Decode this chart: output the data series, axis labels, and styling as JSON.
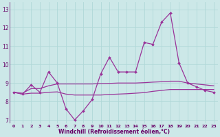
{
  "xlabel": "Windchill (Refroidissement éolien,°C)",
  "x_values": [
    0,
    1,
    2,
    3,
    4,
    5,
    6,
    7,
    8,
    9,
    10,
    11,
    12,
    13,
    14,
    15,
    16,
    17,
    18,
    19,
    20,
    21,
    22,
    23
  ],
  "line1": [
    8.5,
    8.4,
    8.9,
    8.5,
    9.6,
    9.0,
    7.6,
    7.0,
    7.5,
    8.1,
    9.5,
    10.4,
    9.6,
    9.6,
    9.6,
    11.2,
    11.1,
    12.3,
    12.8,
    10.1,
    9.0,
    8.8,
    8.6,
    8.5
  ],
  "line2": [
    8.5,
    8.45,
    8.7,
    8.7,
    8.85,
    8.95,
    8.95,
    8.95,
    8.95,
    8.95,
    8.97,
    8.98,
    9.0,
    9.0,
    9.0,
    9.02,
    9.05,
    9.07,
    9.1,
    9.1,
    9.0,
    8.95,
    8.9,
    8.85
  ],
  "line3": [
    8.5,
    8.4,
    8.45,
    8.45,
    8.5,
    8.52,
    8.4,
    8.35,
    8.35,
    8.35,
    8.35,
    8.38,
    8.4,
    8.42,
    8.45,
    8.48,
    8.55,
    8.6,
    8.65,
    8.65,
    8.65,
    8.65,
    8.65,
    8.65
  ],
  "line_color": "#993399",
  "bg_color": "#cce8e8",
  "grid_color": "#b0d8d8",
  "ylim": [
    6.8,
    13.4
  ],
  "xlim": [
    -0.5,
    23.5
  ],
  "yticks": [
    7,
    8,
    9,
    10,
    11,
    12,
    13
  ],
  "xticks": [
    0,
    1,
    2,
    3,
    4,
    5,
    6,
    7,
    8,
    9,
    10,
    11,
    12,
    13,
    14,
    15,
    16,
    17,
    18,
    19,
    20,
    21,
    22,
    23
  ]
}
